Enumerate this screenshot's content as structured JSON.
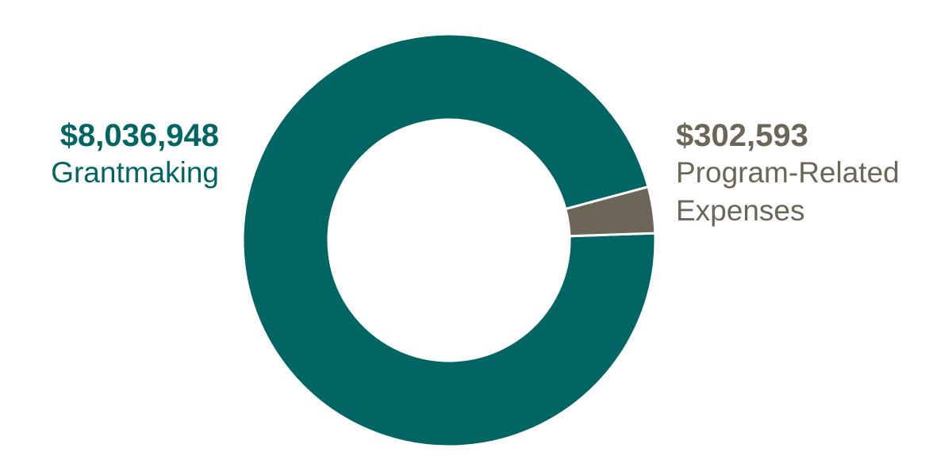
{
  "chart_data": {
    "type": "pie",
    "variant": "donut",
    "slices": [
      {
        "label_amount": "$8,036,948",
        "label_name": "Grantmaking",
        "value": 8036948,
        "color": "#006563"
      },
      {
        "label_amount": "$302,593",
        "label_name_lines": [
          "Program-Related",
          "Expenses"
        ],
        "value": 302593,
        "color": "#6b6657"
      }
    ],
    "legend": "none"
  }
}
